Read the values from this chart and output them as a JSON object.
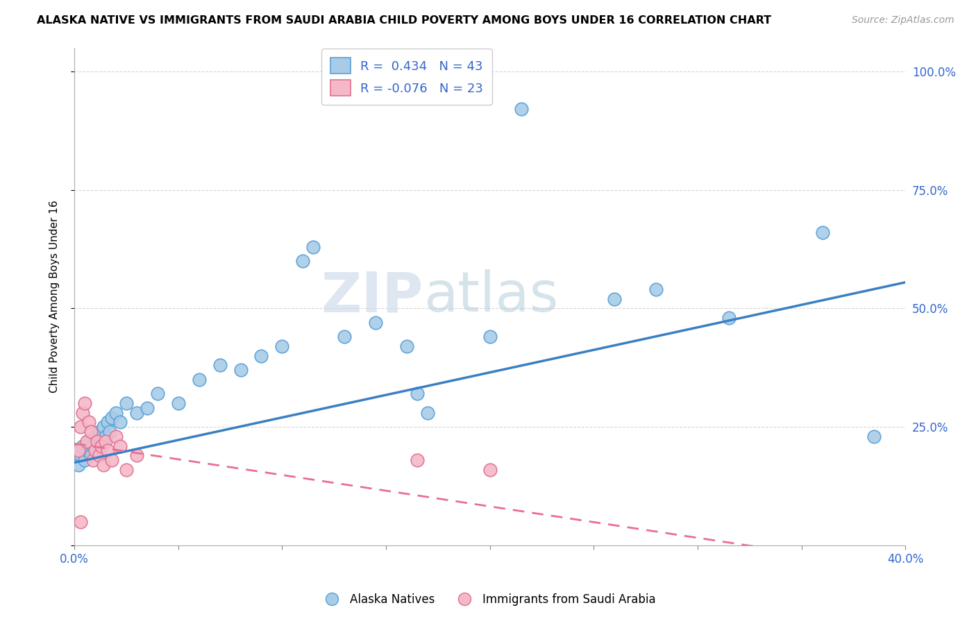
{
  "title": "ALASKA NATIVE VS IMMIGRANTS FROM SAUDI ARABIA CHILD POVERTY AMONG BOYS UNDER 16 CORRELATION CHART",
  "source": "Source: ZipAtlas.com",
  "ylabel": "Child Poverty Among Boys Under 16",
  "xmin": 0.0,
  "xmax": 0.4,
  "ymin": 0.0,
  "ymax": 1.05,
  "yticks": [
    0.0,
    0.25,
    0.5,
    0.75,
    1.0
  ],
  "ytick_labels": [
    "",
    "25.0%",
    "50.0%",
    "75.0%",
    "100.0%"
  ],
  "xticks": [
    0.0,
    0.05,
    0.1,
    0.15,
    0.2,
    0.25,
    0.3,
    0.35,
    0.4
  ],
  "xtick_labels": [
    "0.0%",
    "",
    "",
    "",
    "",
    "",
    "",
    "",
    "40.0%"
  ],
  "blue_R": 0.434,
  "blue_N": 43,
  "pink_R": -0.076,
  "pink_N": 23,
  "blue_color": "#a8cce8",
  "pink_color": "#f5b8c8",
  "blue_edge_color": "#5a9fd4",
  "pink_edge_color": "#e07090",
  "blue_line_color": "#3a7fc4",
  "pink_line_color": "#e87090",
  "blue_scatter": [
    [
      0.002,
      0.17
    ],
    [
      0.003,
      0.19
    ],
    [
      0.004,
      0.21
    ],
    [
      0.005,
      0.18
    ],
    [
      0.006,
      0.2
    ],
    [
      0.007,
      0.22
    ],
    [
      0.008,
      0.19
    ],
    [
      0.009,
      0.21
    ],
    [
      0.01,
      0.23
    ],
    [
      0.011,
      0.2
    ],
    [
      0.012,
      0.24
    ],
    [
      0.013,
      0.22
    ],
    [
      0.014,
      0.25
    ],
    [
      0.015,
      0.23
    ],
    [
      0.016,
      0.26
    ],
    [
      0.017,
      0.24
    ],
    [
      0.018,
      0.27
    ],
    [
      0.02,
      0.28
    ],
    [
      0.022,
      0.26
    ],
    [
      0.025,
      0.3
    ],
    [
      0.03,
      0.28
    ],
    [
      0.035,
      0.29
    ],
    [
      0.04,
      0.32
    ],
    [
      0.05,
      0.3
    ],
    [
      0.06,
      0.35
    ],
    [
      0.07,
      0.38
    ],
    [
      0.08,
      0.37
    ],
    [
      0.09,
      0.4
    ],
    [
      0.1,
      0.42
    ],
    [
      0.11,
      0.6
    ],
    [
      0.115,
      0.63
    ],
    [
      0.13,
      0.44
    ],
    [
      0.145,
      0.47
    ],
    [
      0.16,
      0.42
    ],
    [
      0.165,
      0.32
    ],
    [
      0.17,
      0.28
    ],
    [
      0.2,
      0.44
    ],
    [
      0.215,
      0.92
    ],
    [
      0.26,
      0.52
    ],
    [
      0.28,
      0.54
    ],
    [
      0.315,
      0.48
    ],
    [
      0.36,
      0.66
    ],
    [
      0.385,
      0.23
    ]
  ],
  "pink_scatter": [
    [
      0.002,
      0.2
    ],
    [
      0.003,
      0.25
    ],
    [
      0.004,
      0.28
    ],
    [
      0.005,
      0.3
    ],
    [
      0.006,
      0.22
    ],
    [
      0.007,
      0.26
    ],
    [
      0.008,
      0.24
    ],
    [
      0.009,
      0.18
    ],
    [
      0.01,
      0.2
    ],
    [
      0.011,
      0.22
    ],
    [
      0.012,
      0.19
    ],
    [
      0.013,
      0.21
    ],
    [
      0.014,
      0.17
    ],
    [
      0.015,
      0.22
    ],
    [
      0.016,
      0.2
    ],
    [
      0.018,
      0.18
    ],
    [
      0.02,
      0.23
    ],
    [
      0.022,
      0.21
    ],
    [
      0.025,
      0.16
    ],
    [
      0.03,
      0.19
    ],
    [
      0.165,
      0.18
    ],
    [
      0.2,
      0.16
    ],
    [
      0.003,
      0.05
    ]
  ],
  "watermark_zip": "ZIP",
  "watermark_atlas": "atlas",
  "background_color": "#ffffff",
  "grid_color": "#cccccc"
}
